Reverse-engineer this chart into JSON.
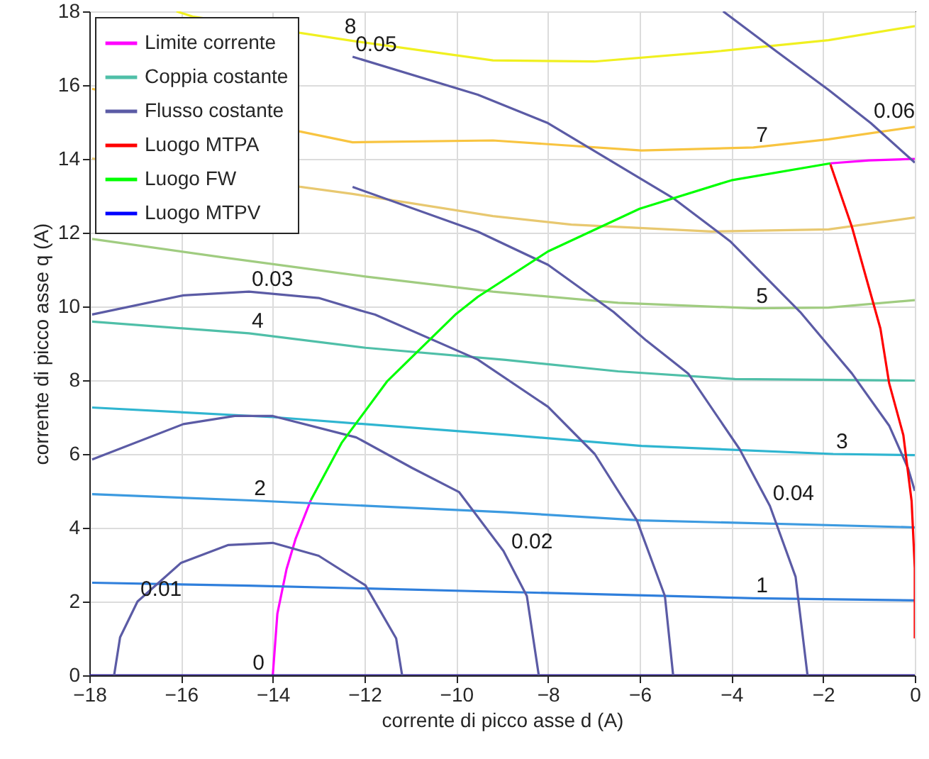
{
  "chart_data": {
    "type": "line",
    "xlabel": "corrente di picco asse d (A)",
    "ylabel": "corrente di picco asse q (A)",
    "xlim": [
      -18,
      0
    ],
    "ylim": [
      0,
      18
    ],
    "xticks": [
      -18,
      -16,
      -14,
      -12,
      -10,
      -8,
      -6,
      -4,
      -2,
      0
    ],
    "yticks": [
      0,
      2,
      4,
      6,
      8,
      10,
      12,
      14,
      16,
      18
    ],
    "grid": true,
    "legend": "top left",
    "series": [
      {
        "name": "Limite corrente",
        "color": "#ff00ff",
        "x": [
          -14,
          -13.9,
          -13.7,
          -13.5,
          -13.17,
          null,
          -1.84,
          -1,
          0
        ],
        "values": [
          0,
          1.67,
          2.88,
          3.71,
          4.75,
          null,
          13.88,
          13.96,
          14.0
        ]
      },
      {
        "color": "#3e2f9e",
        "x": [
          -18,
          0
        ],
        "values": [
          0,
          0
        ]
      },
      {
        "color": "#2f7fdc",
        "x": [
          -17.94,
          -14.52,
          -8.92,
          -3.52,
          0
        ],
        "values": [
          2.51,
          2.43,
          2.26,
          2.09,
          2.03
        ]
      },
      {
        "color": "#3c9ae0",
        "x": [
          -17.94,
          -14.47,
          -8.92,
          -5.96,
          0
        ],
        "values": [
          4.91,
          4.74,
          4.42,
          4.2,
          4.01
        ]
      },
      {
        "color": "#2fb5d0",
        "x": [
          -17.94,
          -14.0,
          -8.92,
          -5.96,
          -1.78,
          0
        ],
        "values": [
          7.26,
          7.0,
          6.52,
          6.22,
          6.0,
          5.97
        ]
      },
      {
        "name": "Coppia costante",
        "color": "#4fbfa8",
        "x": [
          -17.94,
          -14.52,
          -11.98,
          -8.92,
          -6.47,
          -3.92,
          0
        ],
        "values": [
          9.59,
          9.27,
          8.88,
          8.55,
          8.24,
          8.03,
          7.99
        ]
      },
      {
        "color": "#a0cc80",
        "x": [
          -17.94,
          -15.03,
          -11.98,
          -9.2,
          -6.47,
          -3.52,
          -1.88,
          0
        ],
        "values": [
          11.83,
          11.32,
          10.81,
          10.4,
          10.1,
          9.95,
          9.97,
          10.17
        ]
      },
      {
        "color": "#e8c870",
        "x": [
          -17.94,
          -12.26,
          -9.2,
          -7.49,
          -4.43,
          -1.88,
          0
        ],
        "values": [
          14.01,
          13.05,
          12.45,
          12.22,
          12.03,
          12.09,
          12.41
        ]
      },
      {
        "color": "#f8c440",
        "x": [
          -17.94,
          -12.26,
          -9.2,
          -5.96,
          -3.52,
          -1.88,
          0
        ],
        "values": [
          15.9,
          14.45,
          14.5,
          14.23,
          14.31,
          14.53,
          14.87
        ]
      },
      {
        "color": "#f0f020",
        "x": [
          -16.1,
          -15.75,
          -12.26,
          -9.2,
          -6.99,
          -4.43,
          -1.88,
          0
        ],
        "values": [
          18,
          17.86,
          17.2,
          16.67,
          16.64,
          16.9,
          17.22,
          17.6
        ]
      },
      {
        "name": "Flusso costante",
        "color": "#5b5ba5",
        "x": [
          -17.46,
          -17.33,
          -16.95,
          -16.0,
          -14.98,
          -14.0,
          -13.0,
          -11.98,
          -11.31,
          -11.18
        ],
        "values": [
          0,
          1.03,
          2.0,
          3.05,
          3.53,
          3.59,
          3.24,
          2.44,
          1.0,
          0
        ]
      },
      {
        "color": "#5b5ba5",
        "x": [
          -17.94,
          -15.95,
          -14.83,
          -14.0,
          -12.18,
          -10.96,
          -9.94,
          -8.97,
          -8.46,
          -8.2
        ],
        "values": [
          5.85,
          6.81,
          7.03,
          7.03,
          6.45,
          5.62,
          4.97,
          3.37,
          2.15,
          0
        ]
      },
      {
        "color": "#5b5ba5",
        "x": [
          -17.94,
          -15.95,
          -14.52,
          -13.0,
          -11.98,
          -11.77,
          -9.53,
          -8.0,
          -6.98,
          -6.06,
          -5.45,
          -5.27
        ],
        "values": [
          9.78,
          10.3,
          10.4,
          10.23,
          9.85,
          9.78,
          8.56,
          7.28,
          6.0,
          4.2,
          2.15,
          0
        ]
      },
      {
        "color": "#5b5ba5",
        "x": [
          -12.26,
          -9.53,
          -8.0,
          -6.57,
          -5.86,
          -4.94,
          -3.82,
          -3.16,
          -2.6,
          -2.34
        ],
        "values": [
          13.24,
          12.03,
          11.13,
          9.85,
          9.08,
          8.18,
          6.13,
          4.59,
          2.67,
          0
        ]
      },
      {
        "color": "#5b5ba5",
        "x": [
          -12.26,
          -9.53,
          -8.0,
          -5.25,
          -4.03,
          -2.5,
          -1.37,
          -0.56,
          -0.15,
          0
        ],
        "values": [
          16.77,
          15.74,
          14.97,
          12.92,
          11.77,
          9.85,
          8.18,
          6.77,
          5.62,
          5.0
        ]
      },
      {
        "color": "#5b5ba5",
        "x": [
          -4.18,
          -3.0,
          -1.88,
          -0.96,
          0
        ],
        "values": [
          18,
          16.9,
          15.87,
          14.97,
          13.9
        ]
      },
      {
        "name": "Luogo MTPA",
        "color": "#ff0000",
        "x": [
          -1.84,
          -1.37,
          -0.75,
          -0.56,
          -0.25,
          -0.07,
          0,
          0
        ],
        "values": [
          13.85,
          12.15,
          9.4,
          7.92,
          6.51,
          4.72,
          2.9,
          1.0
        ]
      },
      {
        "name": "Luogo FW",
        "color": "#00ff00",
        "x": [
          -13.17,
          -12.5,
          -11.5,
          -10,
          -9.53,
          -8,
          -6,
          -4,
          -1.84
        ],
        "values": [
          4.75,
          6.3,
          7.98,
          9.8,
          10.26,
          11.49,
          12.65,
          13.42,
          13.88
        ]
      },
      {
        "name": "Luogo MTPV",
        "color": "#0000ff"
      }
    ],
    "annotations": [
      {
        "text": "0",
        "x": -14.5,
        "y": 0
      },
      {
        "text": "1",
        "x": -3.52,
        "y": 2.09
      },
      {
        "text": "2",
        "x": -14.47,
        "y": 4.74
      },
      {
        "text": "3",
        "x": -1.78,
        "y": 6.0
      },
      {
        "text": "4",
        "x": -14.52,
        "y": 9.27
      },
      {
        "text": "5",
        "x": -3.52,
        "y": 9.95
      },
      {
        "text": "7",
        "x": -3.52,
        "y": 14.31
      },
      {
        "text": "8",
        "x": -12.5,
        "y": 17.25
      },
      {
        "text": "0.01",
        "x": -16.95,
        "y": 2.0
      },
      {
        "text": "0.02",
        "x": -8.86,
        "y": 3.28
      },
      {
        "text": "0.03",
        "x": -14.52,
        "y": 10.4
      },
      {
        "text": "0.04",
        "x": -3.16,
        "y": 4.59
      },
      {
        "text": "0.05",
        "x": -12.26,
        "y": 16.77
      },
      {
        "text": "0.06",
        "x": -0.96,
        "y": 14.97
      }
    ]
  }
}
